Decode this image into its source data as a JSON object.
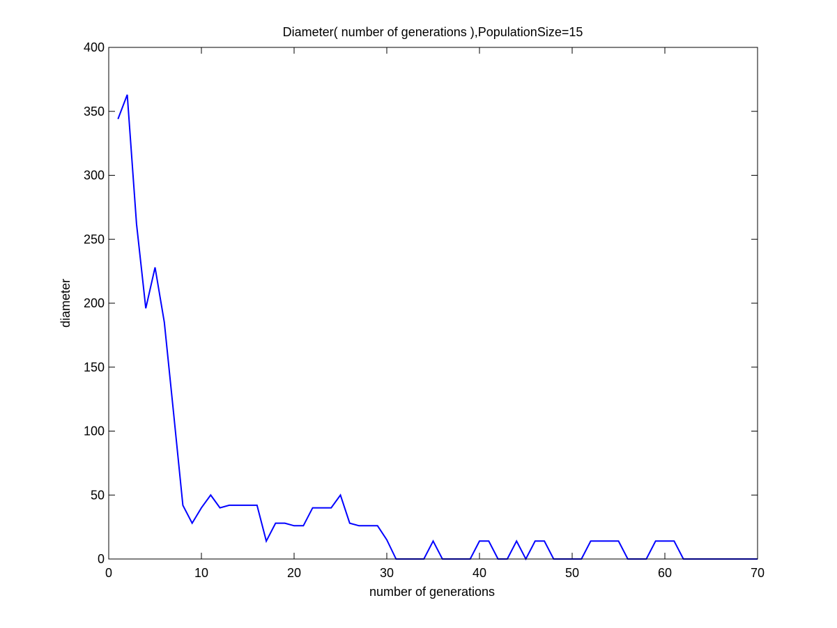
{
  "chart_data": {
    "type": "line",
    "title": "Diameter( number of generations ),PopulationSize=15",
    "xlabel": "number of generations",
    "ylabel": "diameter",
    "xlim": [
      0,
      70
    ],
    "ylim": [
      0,
      400
    ],
    "xticks": [
      0,
      10,
      20,
      30,
      40,
      50,
      60,
      70
    ],
    "yticks": [
      0,
      50,
      100,
      150,
      200,
      250,
      300,
      350,
      400
    ],
    "grid": false,
    "legend": "none",
    "line_color": "#0000ff",
    "series": [
      {
        "x": [
          1,
          2,
          3,
          4,
          5,
          6,
          7,
          8,
          9,
          10,
          11,
          12,
          13,
          14,
          15,
          16,
          17,
          18,
          19,
          20,
          21,
          22,
          23,
          24,
          25,
          26,
          27,
          28,
          29,
          30,
          31,
          32,
          33,
          34,
          35,
          36,
          37,
          38,
          39,
          40,
          41,
          42,
          43,
          44,
          45,
          46,
          47,
          48,
          49,
          50,
          51,
          52,
          53,
          54,
          55,
          56,
          57,
          58,
          59,
          60,
          61,
          62,
          63,
          64,
          65,
          66,
          67,
          68,
          69,
          70
        ],
        "values": [
          344,
          363,
          262,
          196,
          228,
          185,
          114,
          42,
          28,
          40,
          50,
          40,
          42,
          42,
          42,
          42,
          14,
          28,
          28,
          26,
          26,
          40,
          40,
          40,
          50,
          28,
          26,
          26,
          26,
          15,
          0,
          0,
          0,
          0,
          14,
          0,
          0,
          0,
          0,
          14,
          14,
          0,
          0,
          14,
          0,
          14,
          14,
          0,
          0,
          0,
          0,
          14,
          14,
          14,
          14,
          0,
          0,
          0,
          14,
          14,
          14,
          0,
          0,
          0,
          0,
          0,
          0,
          0,
          0,
          0
        ]
      }
    ]
  }
}
